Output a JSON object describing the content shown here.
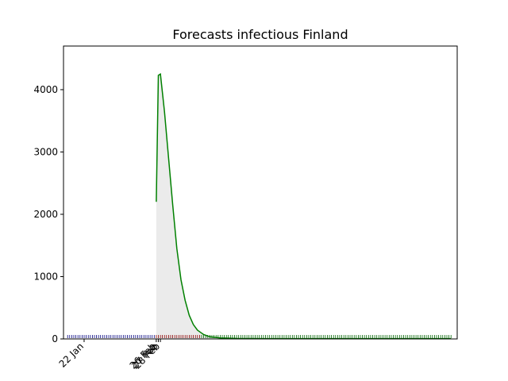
{
  "chart_data": {
    "type": "line",
    "title": "Forecasts infectious Finland",
    "xlabel": "",
    "ylabel": "",
    "x_range": [
      "2020-01-12",
      "2020-07-21"
    ],
    "ylim": [
      0,
      4700
    ],
    "y_ticks": [
      0,
      1000,
      2000,
      3000,
      4000
    ],
    "x_ticks": [
      {
        "date": "2020-01-22",
        "label": "22 Jan"
      },
      {
        "date": "2020-02-26",
        "label": "26 Feb"
      },
      {
        "date": "2020-02-27",
        "label": "27 Feb"
      },
      {
        "date": "2020-02-28",
        "label": "28 Feb"
      }
    ],
    "grid": false,
    "legend": "none",
    "series": [
      {
        "color": "#008000",
        "points": [
          [
            "2020-02-26",
            2200
          ],
          [
            "2020-02-27",
            4230
          ],
          [
            "2020-02-28",
            4250
          ],
          [
            "2020-03-01",
            3650
          ],
          [
            "2020-03-03",
            2900
          ],
          [
            "2020-03-05",
            2150
          ],
          [
            "2020-03-07",
            1450
          ],
          [
            "2020-03-09",
            950
          ],
          [
            "2020-03-11",
            620
          ],
          [
            "2020-03-13",
            380
          ],
          [
            "2020-03-15",
            230
          ],
          [
            "2020-03-17",
            140
          ],
          [
            "2020-03-20",
            70
          ],
          [
            "2020-03-23",
            35
          ],
          [
            "2020-03-28",
            15
          ],
          [
            "2020-04-05",
            8
          ],
          [
            "2020-04-20",
            5
          ],
          [
            "2020-07-18",
            5
          ]
        ]
      }
    ],
    "shaded_band": {
      "color": "#ebebeb",
      "from": "2020-02-26"
    },
    "rug": [
      {
        "color": "#000080",
        "from": "2020-01-14",
        "to": "2020-02-25"
      },
      {
        "color": "#8b0000",
        "from": "2020-02-26",
        "to": "2020-03-18"
      },
      {
        "color": "#006400",
        "from": "2020-03-19",
        "to": "2020-07-18"
      }
    ]
  }
}
